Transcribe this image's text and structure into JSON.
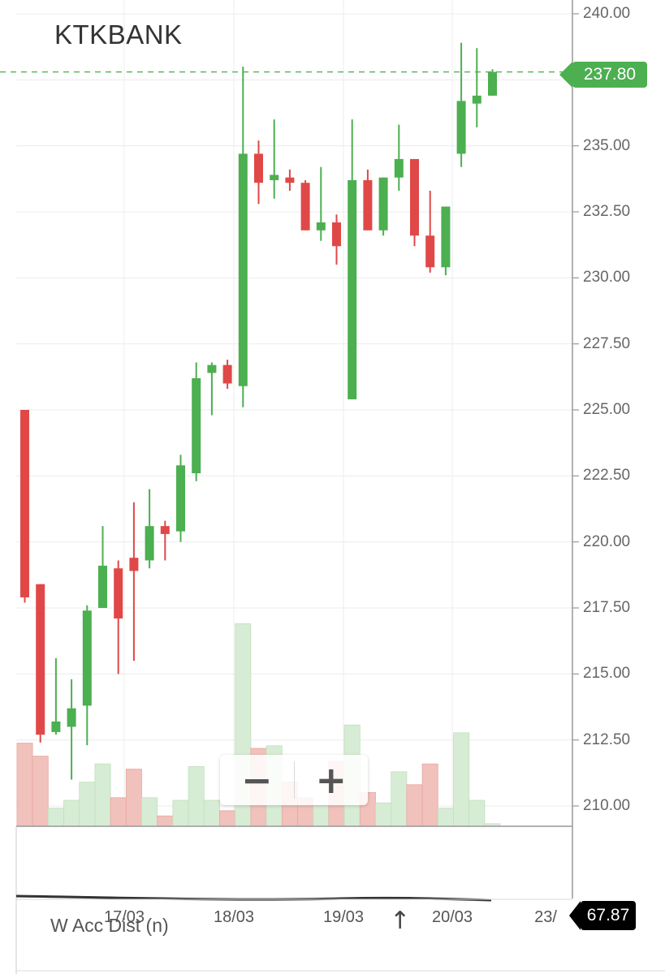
{
  "ticker": "KTKBANK",
  "chart_data": {
    "type": "candlestick",
    "title": "KTKBANK",
    "ylim": [
      209.5,
      240.5
    ],
    "y_ticks": [
      "240.00",
      "237.50",
      "235.00",
      "232.50",
      "230.00",
      "227.50",
      "225.00",
      "222.50",
      "220.00",
      "217.50",
      "215.00",
      "212.50",
      "210.00"
    ],
    "x_tick_labels": [
      "17/03",
      "18/03",
      "19/03",
      "20/03",
      "23/"
    ],
    "last_price": "237.80",
    "grid": true,
    "colors": {
      "up": "#4caf50",
      "down": "#e04848",
      "up_volume": "#d7ecd4",
      "down_volume": "#f1c1bc"
    },
    "candles": [
      {
        "o": 225.0,
        "h": 225.0,
        "l": 217.7,
        "c": 217.9
      },
      {
        "o": 218.4,
        "h": 218.4,
        "l": 212.4,
        "c": 212.7
      },
      {
        "o": 212.8,
        "h": 215.6,
        "l": 212.7,
        "c": 213.2
      },
      {
        "o": 213.0,
        "h": 214.8,
        "l": 211.0,
        "c": 213.7
      },
      {
        "o": 213.8,
        "h": 217.6,
        "l": 212.3,
        "c": 217.4
      },
      {
        "o": 217.5,
        "h": 220.6,
        "l": 217.5,
        "c": 219.1
      },
      {
        "o": 219.0,
        "h": 219.3,
        "l": 215.0,
        "c": 217.1
      },
      {
        "o": 219.4,
        "h": 221.5,
        "l": 215.5,
        "c": 218.9
      },
      {
        "o": 219.3,
        "h": 222.0,
        "l": 219.0,
        "c": 220.6
      },
      {
        "o": 220.6,
        "h": 220.8,
        "l": 219.3,
        "c": 220.3
      },
      {
        "o": 220.4,
        "h": 223.3,
        "l": 220.0,
        "c": 222.9
      },
      {
        "o": 222.6,
        "h": 226.8,
        "l": 222.3,
        "c": 226.2
      },
      {
        "o": 226.4,
        "h": 226.8,
        "l": 224.8,
        "c": 226.7
      },
      {
        "o": 226.7,
        "h": 226.9,
        "l": 225.8,
        "c": 226.0
      },
      {
        "o": 225.9,
        "h": 238.0,
        "l": 225.1,
        "c": 234.7
      },
      {
        "o": 234.7,
        "h": 235.2,
        "l": 232.8,
        "c": 233.6
      },
      {
        "o": 233.7,
        "h": 236.0,
        "l": 233.0,
        "c": 233.9
      },
      {
        "o": 233.8,
        "h": 234.1,
        "l": 233.3,
        "c": 233.6
      },
      {
        "o": 233.6,
        "h": 233.7,
        "l": 231.8,
        "c": 231.8
      },
      {
        "o": 231.8,
        "h": 234.2,
        "l": 231.4,
        "c": 232.1
      },
      {
        "o": 232.1,
        "h": 232.4,
        "l": 230.5,
        "c": 231.2
      },
      {
        "o": 225.4,
        "h": 236.0,
        "l": 225.4,
        "c": 233.7
      },
      {
        "o": 233.7,
        "h": 234.1,
        "l": 231.8,
        "c": 231.8
      },
      {
        "o": 231.8,
        "h": 233.8,
        "l": 231.6,
        "c": 233.8
      },
      {
        "o": 233.8,
        "h": 235.8,
        "l": 233.3,
        "c": 234.5
      },
      {
        "o": 234.5,
        "h": 234.5,
        "l": 231.2,
        "c": 231.6
      },
      {
        "o": 231.6,
        "h": 233.3,
        "l": 230.2,
        "c": 230.4
      },
      {
        "o": 230.4,
        "h": 232.7,
        "l": 230.1,
        "c": 232.7
      },
      {
        "o": 234.7,
        "h": 238.9,
        "l": 234.2,
        "c": 236.7
      },
      {
        "o": 236.6,
        "h": 238.7,
        "l": 235.7,
        "c": 236.9
      },
      {
        "o": 236.9,
        "h": 237.9,
        "l": 236.9,
        "c": 237.8
      }
    ],
    "volumes": [
      32,
      27,
      7,
      10,
      17,
      24,
      11,
      22,
      11,
      4,
      10,
      23,
      10,
      6,
      78,
      30,
      31,
      17,
      11,
      8,
      25,
      39,
      13,
      9,
      21,
      16,
      24,
      7,
      36,
      10,
      1
    ],
    "indicator": {
      "name": "W Acc Dist (n)",
      "value": "67.87"
    }
  },
  "zoom": {
    "out_label": "−",
    "in_label": "+"
  },
  "up_arrow": "↑"
}
